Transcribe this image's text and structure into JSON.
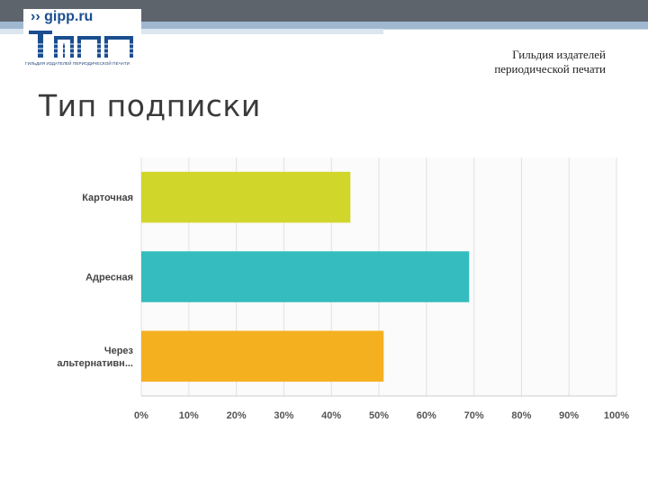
{
  "header": {
    "logo_url": "›› gipp.ru",
    "logo_caption": "ГИЛЬДИЯ ИЗДАТЕЛЕЙ ПЕРИОДИЧЕСКОЙ ПЕЧАТИ",
    "org_line1": "Гильдия издателей",
    "org_line2": "периодической печати"
  },
  "title": "Тип подписки",
  "colors": {
    "band_dark": "#5d646c",
    "band_blue": "#9fb8d0",
    "logo_blue": "#1a4e8f"
  },
  "chart_data": {
    "type": "bar",
    "orientation": "horizontal",
    "categories": [
      "Карточная",
      "Адресная",
      "Через альтернативн..."
    ],
    "values": [
      44,
      69,
      51
    ],
    "unit": "%",
    "xlim": [
      0,
      100
    ],
    "ticks": [
      "0%",
      "10%",
      "20%",
      "30%",
      "40%",
      "50%",
      "60%",
      "70%",
      "80%",
      "90%",
      "100%"
    ],
    "colors": [
      "#d1d62a",
      "#34bcbe",
      "#f5b020"
    ],
    "grid": true,
    "legend": "none"
  }
}
